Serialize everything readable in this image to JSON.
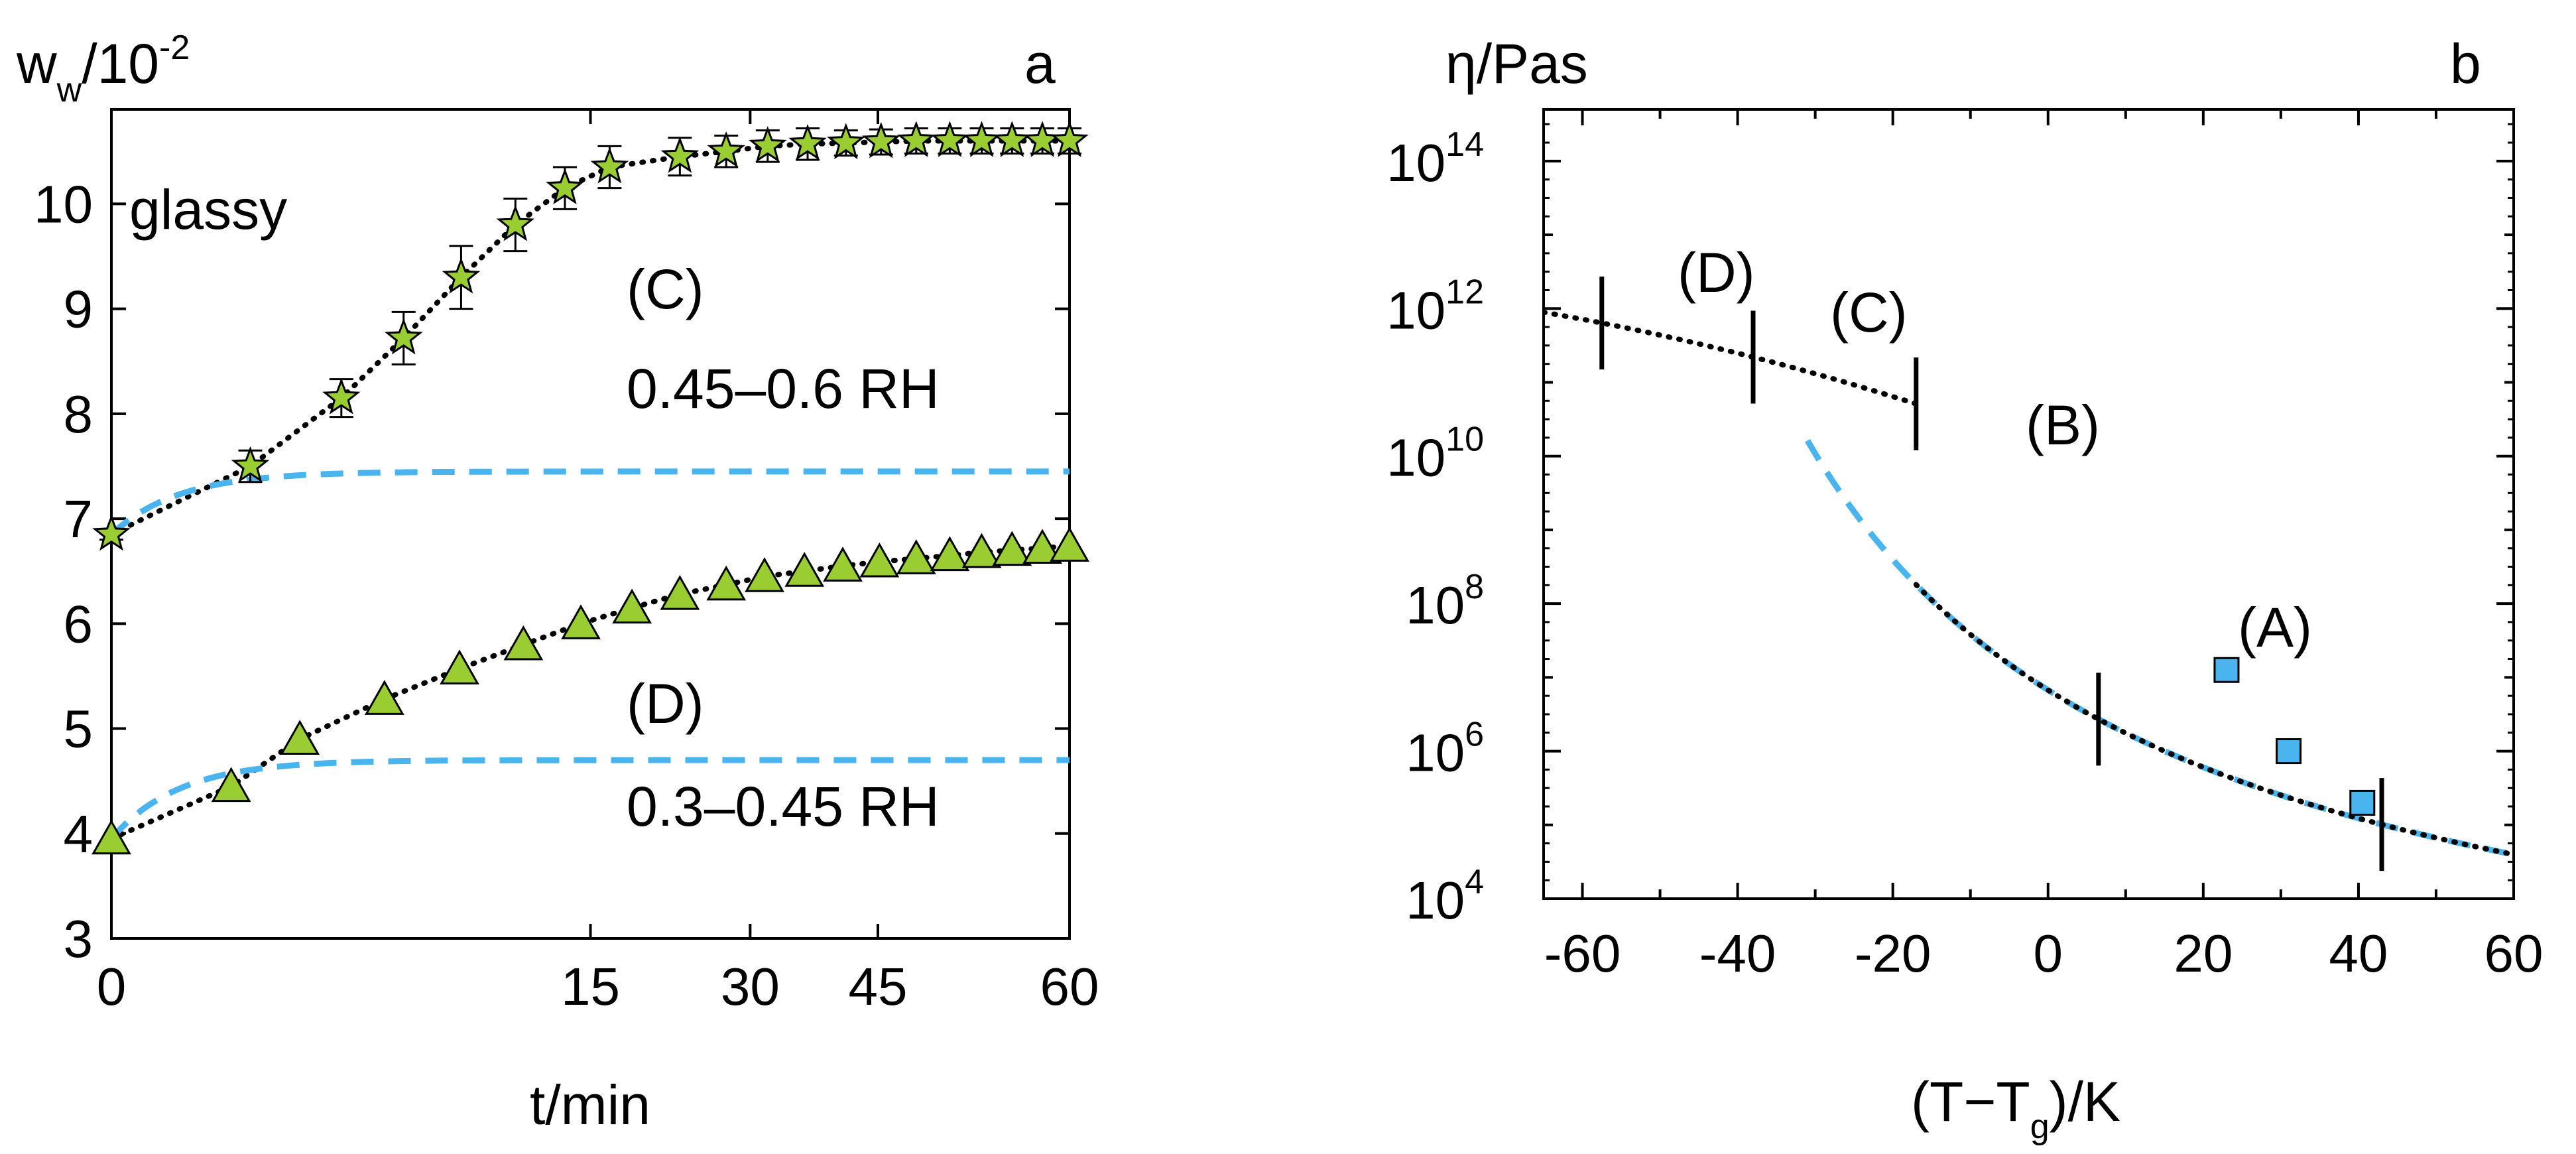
{
  "figure": {
    "panels": [
      "a",
      "b"
    ]
  },
  "chart_data": [
    {
      "panel": "a",
      "type": "scatter",
      "ylabel_main": "w",
      "ylabel_sub": "w",
      "ylabel_rest": "/10",
      "ylabel_exp": "-2",
      "xlabel": "t/min",
      "panel_label": "a",
      "annotation_glassy": "glassy",
      "annotation_c": "(C)",
      "annotation_c_range": "0.45–0.6 RH",
      "annotation_d": "(D)",
      "annotation_d_range": "0.3–0.45 RH",
      "xlim": [
        0,
        60
      ],
      "ylim": [
        3,
        10.9
      ],
      "x_ticks": [
        {
          "v": 0,
          "label": "0"
        },
        {
          "v": 30,
          "label": "15"
        },
        {
          "v": 40,
          "label": "30"
        },
        {
          "v": 48,
          "label": "45"
        },
        {
          "v": 60,
          "label": "60"
        }
      ],
      "y_ticks": [
        3,
        4,
        5,
        6,
        7,
        8,
        9,
        10
      ],
      "series": [
        {
          "name": "(C) 0.45–0.6 RH",
          "marker": "star",
          "color": "#9ACD32",
          "x": [
            0,
            8.7,
            14.4,
            18.3,
            21.9,
            25.3,
            28.4,
            31.2,
            35.6,
            38.5,
            41.1,
            43.6,
            46,
            48.2,
            50.4,
            52.5,
            54.5,
            56.4,
            58.3,
            60
          ],
          "y": [
            6.85,
            7.5,
            8.15,
            8.72,
            9.3,
            9.8,
            10.15,
            10.35,
            10.45,
            10.5,
            10.55,
            10.57,
            10.58,
            10.59,
            10.6,
            10.6,
            10.6,
            10.6,
            10.6,
            10.6
          ],
          "err": [
            0.05,
            0.15,
            0.18,
            0.25,
            0.3,
            0.25,
            0.2,
            0.2,
            0.18,
            0.15,
            0.15,
            0.15,
            0.12,
            0.12,
            0.12,
            0.12,
            0.12,
            0.12,
            0.12,
            0.12
          ]
        },
        {
          "name": "(D) 0.3–0.45 RH",
          "marker": "triangle",
          "color": "#9ACD32",
          "x": [
            0,
            7.5,
            11.8,
            17.1,
            21.8,
            25.8,
            29.4,
            32.6,
            35.6,
            38.5,
            40.9,
            43.4,
            45.8,
            48.1,
            50.4,
            52.5,
            54.5,
            56.4,
            58.3,
            60
          ],
          "y": [
            3.95,
            4.45,
            4.9,
            5.28,
            5.57,
            5.8,
            6.0,
            6.15,
            6.28,
            6.37,
            6.45,
            6.5,
            6.55,
            6.59,
            6.62,
            6.65,
            6.68,
            6.7,
            6.72,
            6.74
          ]
        }
      ],
      "fits": [
        {
          "name": "(C) fit",
          "style": "dotted",
          "color": "#000000"
        },
        {
          "name": "(C) initial",
          "style": "dashed",
          "color": "#49B4EE",
          "plateau": 7.45
        },
        {
          "name": "(D) fit",
          "style": "dotted",
          "color": "#000000"
        },
        {
          "name": "(D) initial",
          "style": "dashed",
          "color": "#49B4EE",
          "plateau": 4.7
        }
      ]
    },
    {
      "panel": "b",
      "type": "line",
      "ylabel": "η/Pas",
      "xlabel_main": "(T−T",
      "xlabel_sub": "g",
      "xlabel_rest": ")/K",
      "panel_label": "b",
      "annotation_a": "(A)",
      "annotation_b": "(B)",
      "annotation_c": "(C)",
      "annotation_d": "(D)",
      "xlim": [
        -65,
        60
      ],
      "ylim_log10": [
        4,
        14.7
      ],
      "x_ticks": [
        -60,
        -40,
        -20,
        0,
        20,
        40,
        60
      ],
      "y_ticks": [
        {
          "base": "10",
          "exp": "4",
          "v": 4
        },
        {
          "base": "10",
          "exp": "6",
          "v": 6
        },
        {
          "base": "10",
          "exp": "8",
          "v": 8
        },
        {
          "base": "10",
          "exp": "10",
          "v": 10
        },
        {
          "base": "10",
          "exp": "12",
          "v": 12
        },
        {
          "base": "10",
          "exp": "14",
          "v": 14
        }
      ],
      "squares": {
        "color": "#49B4EE",
        "x": [
          23,
          31,
          40.5
        ],
        "log10_y": [
          7.1,
          6.0,
          5.3
        ]
      },
      "segment_markers_x": [
        -57.5,
        -38,
        -17,
        6.5,
        43
      ],
      "curves": [
        {
          "name": "viscosity model",
          "style": "dotted",
          "color": "#000000"
        },
        {
          "name": "WLF extrapolation",
          "style": "dashed",
          "color": "#49B4EE"
        }
      ]
    }
  ]
}
